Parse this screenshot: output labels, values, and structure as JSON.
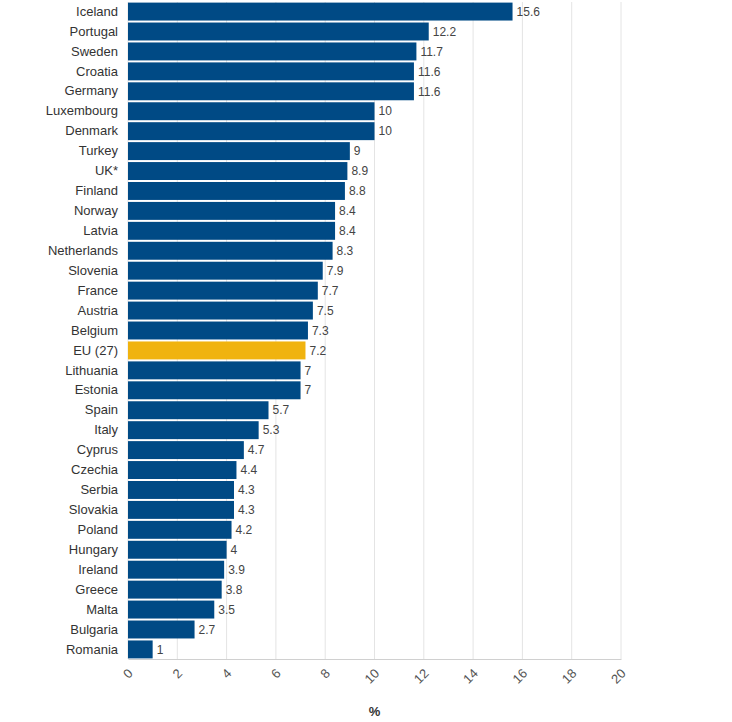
{
  "chart_data": {
    "type": "bar",
    "orientation": "horizontal",
    "categories": [
      "Iceland",
      "Portugal",
      "Sweden",
      "Croatia",
      "Germany",
      "Luxembourg",
      "Denmark",
      "Turkey",
      "UK*",
      "Finland",
      "Norway",
      "Latvia",
      "Netherlands",
      "Slovenia",
      "France",
      "Austria",
      "Belgium",
      "EU (27)",
      "Lithuania",
      "Estonia",
      "Spain",
      "Italy",
      "Cyprus",
      "Czechia",
      "Serbia",
      "Slovakia",
      "Poland",
      "Hungary",
      "Ireland",
      "Greece",
      "Malta",
      "Bulgaria",
      "Romania"
    ],
    "values": [
      15.6,
      12.2,
      11.7,
      11.6,
      11.6,
      10,
      10,
      9,
      8.9,
      8.8,
      8.4,
      8.4,
      8.3,
      7.9,
      7.7,
      7.5,
      7.3,
      7.2,
      7,
      7,
      5.7,
      5.3,
      4.7,
      4.4,
      4.3,
      4.3,
      4.2,
      4,
      3.9,
      3.8,
      3.5,
      2.7,
      1
    ],
    "colors": [
      "#004a85",
      "#004a85",
      "#004a85",
      "#004a85",
      "#004a85",
      "#004a85",
      "#004a85",
      "#004a85",
      "#004a85",
      "#004a85",
      "#004a85",
      "#004a85",
      "#004a85",
      "#004a85",
      "#004a85",
      "#004a85",
      "#004a85",
      "#f0b30f",
      "#004a85",
      "#004a85",
      "#004a85",
      "#004a85",
      "#004a85",
      "#004a85",
      "#004a85",
      "#004a85",
      "#004a85",
      "#004a85",
      "#004a85",
      "#004a85",
      "#004a85",
      "#004a85",
      "#004a85"
    ],
    "x_label": "%",
    "xlim": [
      0,
      20
    ],
    "xticks": [
      0,
      2,
      4,
      6,
      8,
      10,
      12,
      14,
      16,
      18,
      20
    ],
    "grid": true,
    "data_labels": true
  }
}
